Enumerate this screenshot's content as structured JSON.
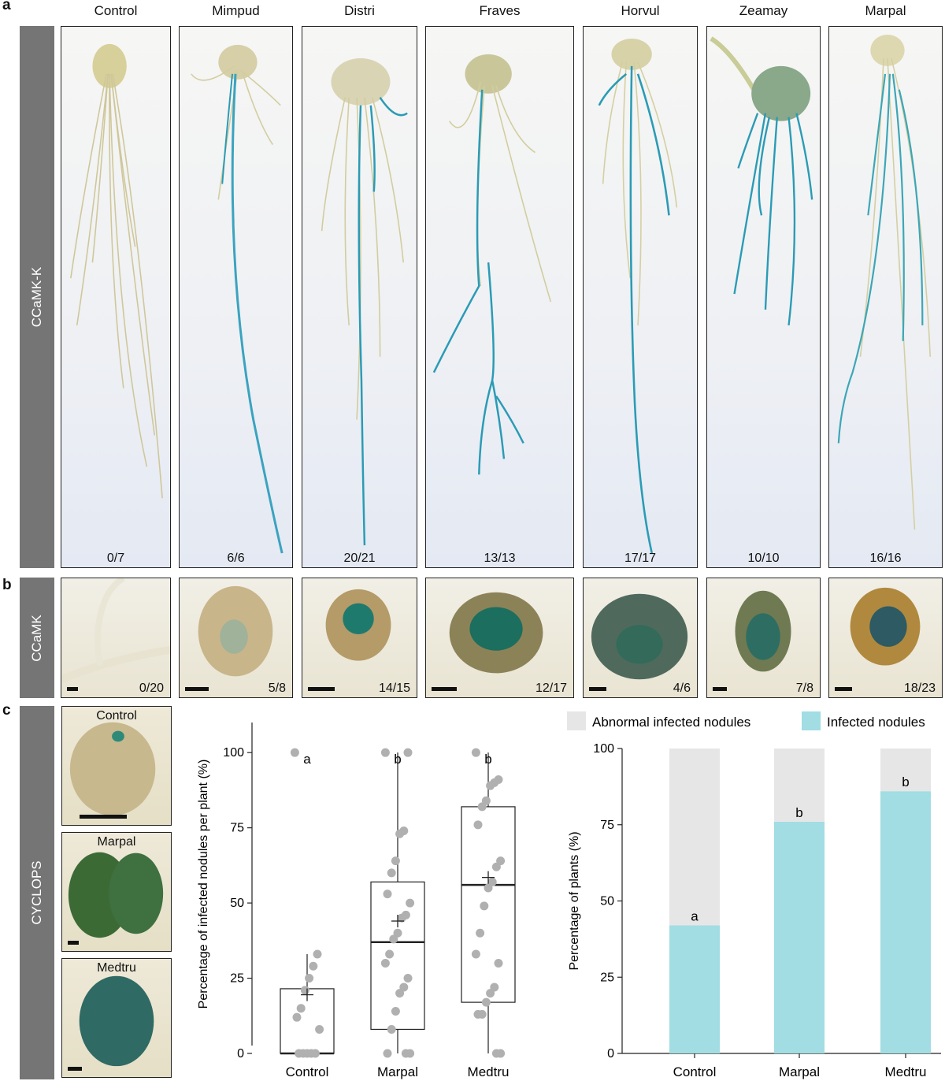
{
  "panel_a": {
    "letter": "a",
    "row_label": "CCaMK-K",
    "columns": [
      {
        "title": "Control",
        "ratio": "0/7"
      },
      {
        "title": "Mimpud",
        "ratio": "6/6"
      },
      {
        "title": "Distri",
        "ratio": "20/21"
      },
      {
        "title": "Fraves",
        "ratio": "13/13"
      },
      {
        "title": "Horvul",
        "ratio": "17/17"
      },
      {
        "title": "Zeamay",
        "ratio": "10/10"
      },
      {
        "title": "Marpal",
        "ratio": "16/16"
      }
    ]
  },
  "panel_b": {
    "letter": "b",
    "row_label": "CCaMK",
    "ratios": [
      "0/20",
      "5/8",
      "14/15",
      "12/17",
      "4/6",
      "7/8",
      "18/23"
    ]
  },
  "panel_c": {
    "letter": "c",
    "row_label": "CYCLOPS",
    "images": [
      {
        "label": "Control"
      },
      {
        "label": "Marpal"
      },
      {
        "label": "Medtru"
      }
    ]
  },
  "colors": {
    "stain_blue": "#2a9bb5",
    "infected": "#a1dde3",
    "abnormal": "#e6e6e6",
    "point": "#b0b0b0"
  },
  "chart_data": [
    {
      "type": "box",
      "ylabel": "Percentage of infected nodules per plant (%)",
      "ylim": [
        0,
        110
      ],
      "yticks": [
        0,
        25,
        50,
        75,
        100
      ],
      "categories": [
        "Control",
        "Marpal",
        "Medtru"
      ],
      "letters": [
        "a",
        "b",
        "b"
      ],
      "boxes": [
        {
          "q1": 0,
          "median": 0,
          "q3": 21.5,
          "whisker_low": 0,
          "whisker_high": 33,
          "mean": 19.5
        },
        {
          "q1": 8,
          "median": 37,
          "q3": 57,
          "whisker_low": 0,
          "whisker_high": 100,
          "mean": 44
        },
        {
          "q1": 17,
          "median": 56,
          "q3": 82,
          "whisker_low": 0,
          "whisker_high": 100,
          "mean": 58.5
        }
      ],
      "points": [
        [
          100,
          33,
          29,
          25,
          21,
          15,
          12,
          8,
          0,
          0,
          0,
          0,
          0
        ],
        [
          100,
          100,
          74,
          73,
          64,
          60,
          53,
          50,
          46,
          45,
          40,
          38,
          33,
          30,
          25,
          22,
          20,
          14,
          8,
          0,
          0,
          0
        ],
        [
          100,
          91,
          90,
          89,
          84,
          82,
          76,
          64,
          62,
          57,
          55,
          49,
          40,
          33,
          30,
          22,
          20,
          17,
          13,
          13,
          0,
          0
        ]
      ]
    },
    {
      "type": "bar",
      "stacked": true,
      "ylabel": "Percentage of plants (%)",
      "ylim": [
        0,
        100
      ],
      "yticks": [
        0,
        25,
        50,
        75,
        100
      ],
      "categories": [
        "Control",
        "Marpal",
        "Medtru"
      ],
      "legend_placement": "top",
      "series": [
        {
          "name": "Infected nodules",
          "values": [
            42,
            76,
            86
          ]
        },
        {
          "name": "Abnormal infected nodules",
          "values": [
            58,
            24,
            14
          ]
        }
      ],
      "letters": [
        "a",
        "b",
        "b"
      ]
    }
  ]
}
